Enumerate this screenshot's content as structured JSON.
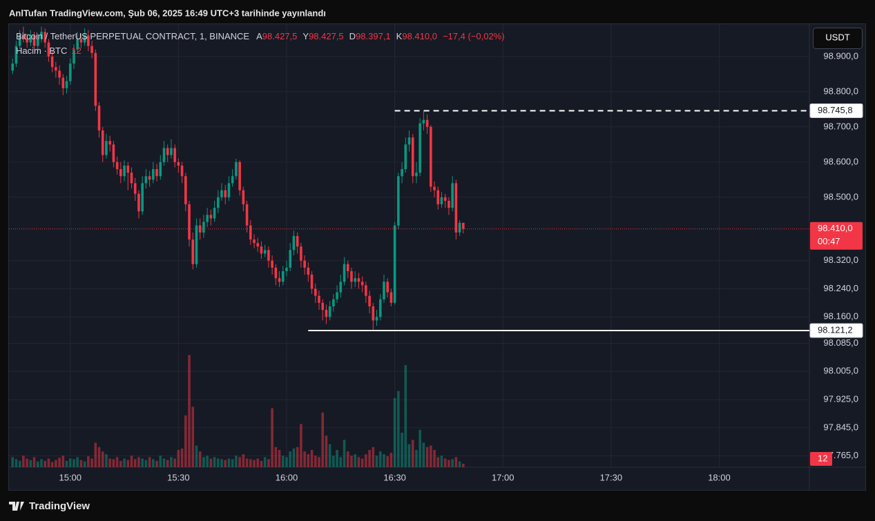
{
  "published": "AnlTufan TradingView.com, Şub 06, 2025 16:49 UTC+3 tarihinde yayınlandı",
  "footer": "TradingView",
  "chart_data": {
    "type": "candlestick",
    "title": "Bitcoin / TetherUS PERPETUAL CONTRACT, 1, BINANCE",
    "ohlc_legend": [
      {
        "key": "A",
        "label": "98.427,5"
      },
      {
        "key": "Y",
        "label": "98.427,5"
      },
      {
        "key": "D",
        "label": "98.397,1"
      },
      {
        "key": "K",
        "label": "98.410,0"
      }
    ],
    "change": "−17,4 (−0,02%)",
    "volume_title": "Hacim · BTC",
    "currency": "USDT",
    "up_color": "#089981",
    "down_color": "#f23645",
    "grid": true,
    "xlim": [
      "14:43",
      "18:25"
    ],
    "xticks": [
      "15:00",
      "15:30",
      "16:00",
      "16:30",
      "17:00",
      "17:30",
      "18:00"
    ],
    "ylim": [
      97733,
      98992
    ],
    "yticks": [
      {
        "value": 98900,
        "label": "98.900,0"
      },
      {
        "value": 98800,
        "label": "98.800,0"
      },
      {
        "value": 98700,
        "label": "98.700,0"
      },
      {
        "value": 98600,
        "label": "98.600,0"
      },
      {
        "value": 98500,
        "label": "98.500,0"
      },
      {
        "value": 98320,
        "label": "98.320,0"
      },
      {
        "value": 98240,
        "label": "98.240,0"
      },
      {
        "value": 98160,
        "label": "98.160,0"
      },
      {
        "value": 98085,
        "label": "98.085,0"
      },
      {
        "value": 98005,
        "label": "98.005,0"
      },
      {
        "value": 97925,
        "label": "97.925,0"
      },
      {
        "value": 97845,
        "label": "97.845,0"
      },
      {
        "value": 97765,
        "label": "97.765,0"
      }
    ],
    "volume_lim": [
      0,
      420
    ],
    "current_price": {
      "value": 98410,
      "label": "98.410,0",
      "countdown": "00:47"
    },
    "price_lines": [
      {
        "value": 98745.8,
        "label": "98.745,8",
        "style": "dashed",
        "from": "16:30"
      },
      {
        "value": 98121.2,
        "label": "98.121,2",
        "style": "solid",
        "from": "16:06"
      }
    ],
    "x": [
      "14:44",
      "14:45",
      "14:46",
      "14:47",
      "14:48",
      "14:49",
      "14:50",
      "14:51",
      "14:52",
      "14:53",
      "14:54",
      "14:55",
      "14:56",
      "14:57",
      "14:58",
      "14:59",
      "15:00",
      "15:01",
      "15:02",
      "15:03",
      "15:04",
      "15:05",
      "15:06",
      "15:07",
      "15:08",
      "15:09",
      "15:10",
      "15:11",
      "15:12",
      "15:13",
      "15:14",
      "15:15",
      "15:16",
      "15:17",
      "15:18",
      "15:19",
      "15:20",
      "15:21",
      "15:22",
      "15:23",
      "15:24",
      "15:25",
      "15:26",
      "15:27",
      "15:28",
      "15:29",
      "15:30",
      "15:31",
      "15:32",
      "15:33",
      "15:34",
      "15:35",
      "15:36",
      "15:37",
      "15:38",
      "15:39",
      "15:40",
      "15:41",
      "15:42",
      "15:43",
      "15:44",
      "15:45",
      "15:46",
      "15:47",
      "15:48",
      "15:49",
      "15:50",
      "15:51",
      "15:52",
      "15:53",
      "15:54",
      "15:55",
      "15:56",
      "15:57",
      "15:58",
      "15:59",
      "16:00",
      "16:01",
      "16:02",
      "16:03",
      "16:04",
      "16:05",
      "16:06",
      "16:07",
      "16:08",
      "16:09",
      "16:10",
      "16:11",
      "16:12",
      "16:13",
      "16:14",
      "16:15",
      "16:16",
      "16:17",
      "16:18",
      "16:19",
      "16:20",
      "16:21",
      "16:22",
      "16:23",
      "16:24",
      "16:25",
      "16:26",
      "16:27",
      "16:28",
      "16:29",
      "16:30",
      "16:31",
      "16:32",
      "16:33",
      "16:34",
      "16:35",
      "16:36",
      "16:37",
      "16:38",
      "16:39",
      "16:40",
      "16:41",
      "16:42",
      "16:43",
      "16:44",
      "16:45",
      "16:46",
      "16:47",
      "16:48",
      "16:49"
    ],
    "candles": [
      [
        98860,
        98895,
        98850,
        98880
      ],
      [
        98880,
        98945,
        98870,
        98930
      ],
      [
        98930,
        98975,
        98920,
        98960
      ],
      [
        98960,
        98985,
        98940,
        98950
      ],
      [
        98950,
        98965,
        98925,
        98940
      ],
      [
        98940,
        98975,
        98930,
        98960
      ],
      [
        98960,
        98970,
        98920,
        98930
      ],
      [
        98930,
        98965,
        98915,
        98950
      ],
      [
        98950,
        98985,
        98940,
        98970
      ],
      [
        98970,
        98980,
        98925,
        98940
      ],
      [
        98940,
        98950,
        98885,
        98900
      ],
      [
        98900,
        98915,
        98855,
        98870
      ],
      [
        98870,
        98885,
        98840,
        98860
      ],
      [
        98860,
        98875,
        98820,
        98840
      ],
      [
        98840,
        98850,
        98790,
        98810
      ],
      [
        98810,
        98845,
        98795,
        98830
      ],
      [
        98830,
        98895,
        98820,
        98880
      ],
      [
        98880,
        98935,
        98865,
        98920
      ],
      [
        98920,
        98970,
        98910,
        98950
      ],
      [
        98950,
        98965,
        98925,
        98940
      ],
      [
        98940,
        98980,
        98930,
        98960
      ],
      [
        98960,
        98975,
        98915,
        98930
      ],
      [
        98930,
        98945,
        98895,
        98910
      ],
      [
        98910,
        98920,
        98745,
        98760
      ],
      [
        98760,
        98770,
        98670,
        98690
      ],
      [
        98690,
        98700,
        98600,
        98620
      ],
      [
        98620,
        98680,
        98610,
        98660
      ],
      [
        98660,
        98675,
        98630,
        98650
      ],
      [
        98650,
        98660,
        98585,
        98600
      ],
      [
        98600,
        98615,
        98565,
        98580
      ],
      [
        98580,
        98600,
        98540,
        98560
      ],
      [
        98560,
        98605,
        98545,
        98590
      ],
      [
        98590,
        98600,
        98520,
        98570
      ],
      [
        98570,
        98585,
        98525,
        98540
      ],
      [
        98540,
        98555,
        98490,
        98510
      ],
      [
        98510,
        98520,
        98440,
        98460
      ],
      [
        98460,
        98560,
        98450,
        98540
      ],
      [
        98540,
        98580,
        98525,
        98560
      ],
      [
        98560,
        98575,
        98530,
        98550
      ],
      [
        98550,
        98600,
        98540,
        98580
      ],
      [
        98580,
        98595,
        98545,
        98560
      ],
      [
        98560,
        98620,
        98550,
        98600
      ],
      [
        98600,
        98660,
        98590,
        98640
      ],
      [
        98640,
        98650,
        98600,
        98620
      ],
      [
        98620,
        98665,
        98610,
        98640
      ],
      [
        98640,
        98650,
        98585,
        98600
      ],
      [
        98600,
        98610,
        98570,
        98590
      ],
      [
        98590,
        98600,
        98540,
        98560
      ],
      [
        98560,
        98570,
        98460,
        98480
      ],
      [
        98480,
        98490,
        98360,
        98380
      ],
      [
        98380,
        98400,
        98295,
        98310
      ],
      [
        98310,
        98440,
        98300,
        98420
      ],
      [
        98420,
        98440,
        98380,
        98400
      ],
      [
        98400,
        98450,
        98385,
        98430
      ],
      [
        98430,
        98470,
        98415,
        98450
      ],
      [
        98450,
        98465,
        98420,
        98440
      ],
      [
        98440,
        98490,
        98430,
        98470
      ],
      [
        98470,
        98520,
        98455,
        98500
      ],
      [
        98500,
        98540,
        98490,
        98520
      ],
      [
        98520,
        98535,
        98480,
        98500
      ],
      [
        98500,
        98560,
        98490,
        98540
      ],
      [
        98540,
        98580,
        98530,
        98560
      ],
      [
        98560,
        98610,
        98550,
        98600
      ],
      [
        98600,
        98605,
        98505,
        98520
      ],
      [
        98520,
        98530,
        98460,
        98480
      ],
      [
        98480,
        98490,
        98400,
        98420
      ],
      [
        98420,
        98435,
        98365,
        98380
      ],
      [
        98380,
        98395,
        98355,
        98370
      ],
      [
        98370,
        98385,
        98345,
        98360
      ],
      [
        98360,
        98375,
        98325,
        98340
      ],
      [
        98340,
        98365,
        98330,
        98350
      ],
      [
        98350,
        98360,
        98300,
        98320
      ],
      [
        98320,
        98335,
        98280,
        98300
      ],
      [
        98300,
        98310,
        98250,
        98270
      ],
      [
        98270,
        98290,
        98245,
        98260
      ],
      [
        98260,
        98305,
        98250,
        98290
      ],
      [
        98290,
        98320,
        98275,
        98300
      ],
      [
        98300,
        98370,
        98290,
        98350
      ],
      [
        98350,
        98405,
        98335,
        98390
      ],
      [
        98390,
        98400,
        98340,
        98360
      ],
      [
        98360,
        98370,
        98300,
        98320
      ],
      [
        98320,
        98335,
        98280,
        98300
      ],
      [
        98300,
        98315,
        98260,
        98280
      ],
      [
        98280,
        98290,
        98225,
        98240
      ],
      [
        98240,
        98255,
        98200,
        98220
      ],
      [
        98220,
        98235,
        98180,
        98200
      ],
      [
        98200,
        98210,
        98150,
        98180
      ],
      [
        98180,
        98195,
        98140,
        98160
      ],
      [
        98160,
        98205,
        98150,
        98190
      ],
      [
        98190,
        98225,
        98175,
        98210
      ],
      [
        98210,
        98250,
        98200,
        98230
      ],
      [
        98230,
        98280,
        98215,
        98260
      ],
      [
        98260,
        98330,
        98250,
        98310
      ],
      [
        98310,
        98320,
        98270,
        98290
      ],
      [
        98290,
        98300,
        98240,
        98260
      ],
      [
        98260,
        98290,
        98245,
        98270
      ],
      [
        98270,
        98285,
        98240,
        98260
      ],
      [
        98260,
        98275,
        98230,
        98250
      ],
      [
        98250,
        98260,
        98200,
        98220
      ],
      [
        98220,
        98235,
        98170,
        98190
      ],
      [
        98190,
        98200,
        98121.2,
        98150
      ],
      [
        98150,
        98180,
        98135,
        98160
      ],
      [
        98160,
        98225,
        98150,
        98210
      ],
      [
        98210,
        98280,
        98200,
        98260
      ],
      [
        98260,
        98270,
        98215,
        98230
      ],
      [
        98230,
        98240,
        98190,
        98200
      ],
      [
        98200,
        98430,
        98195,
        98420
      ],
      [
        98420,
        98570,
        98410,
        98560
      ],
      [
        98560,
        98600,
        98540,
        98580
      ],
      [
        98580,
        98670,
        98570,
        98650
      ],
      [
        98650,
        98690,
        98630,
        98670
      ],
      [
        98670,
        98680,
        98540,
        98560
      ],
      [
        98560,
        98600,
        98540,
        98570
      ],
      [
        98570,
        98725,
        98560,
        98710
      ],
      [
        98710,
        98745.8,
        98690,
        98720
      ],
      [
        98720,
        98735,
        98680,
        98700
      ],
      [
        98700,
        98705,
        98515,
        98530
      ],
      [
        98530,
        98545,
        98500,
        98520
      ],
      [
        98520,
        98530,
        98465,
        98480
      ],
      [
        98480,
        98515,
        98470,
        98500
      ],
      [
        98500,
        98510,
        98470,
        98490
      ],
      [
        98490,
        98500,
        98450,
        98470
      ],
      [
        98470,
        98560,
        98460,
        98540
      ],
      [
        98540,
        98550,
        98380,
        98400
      ],
      [
        98400,
        98435,
        98390,
        98427.5
      ],
      [
        98427.5,
        98427.5,
        98397.1,
        98410
      ]
    ],
    "volumes": [
      35,
      28,
      22,
      40,
      30,
      25,
      35,
      20,
      28,
      22,
      30,
      18,
      25,
      33,
      40,
      22,
      30,
      28,
      35,
      25,
      20,
      38,
      30,
      85,
      70,
      55,
      45,
      30,
      28,
      35,
      22,
      30,
      25,
      40,
      28,
      35,
      30,
      25,
      35,
      28,
      22,
      40,
      30,
      25,
      35,
      30,
      60,
      65,
      180,
      390,
      210,
      75,
      55,
      35,
      40,
      30,
      35,
      30,
      28,
      25,
      30,
      28,
      40,
      35,
      45,
      30,
      28,
      25,
      30,
      22,
      35,
      28,
      205,
      70,
      60,
      40,
      35,
      55,
      65,
      70,
      150,
      55,
      45,
      60,
      40,
      35,
      190,
      110,
      80,
      40,
      60,
      35,
      95,
      55,
      40,
      45,
      35,
      30,
      45,
      60,
      70,
      40,
      55,
      45,
      38,
      50,
      240,
      265,
      120,
      355,
      80,
      95,
      60,
      130,
      85,
      70,
      75,
      60,
      35,
      40,
      30,
      25,
      28,
      35,
      20,
      12
    ]
  }
}
